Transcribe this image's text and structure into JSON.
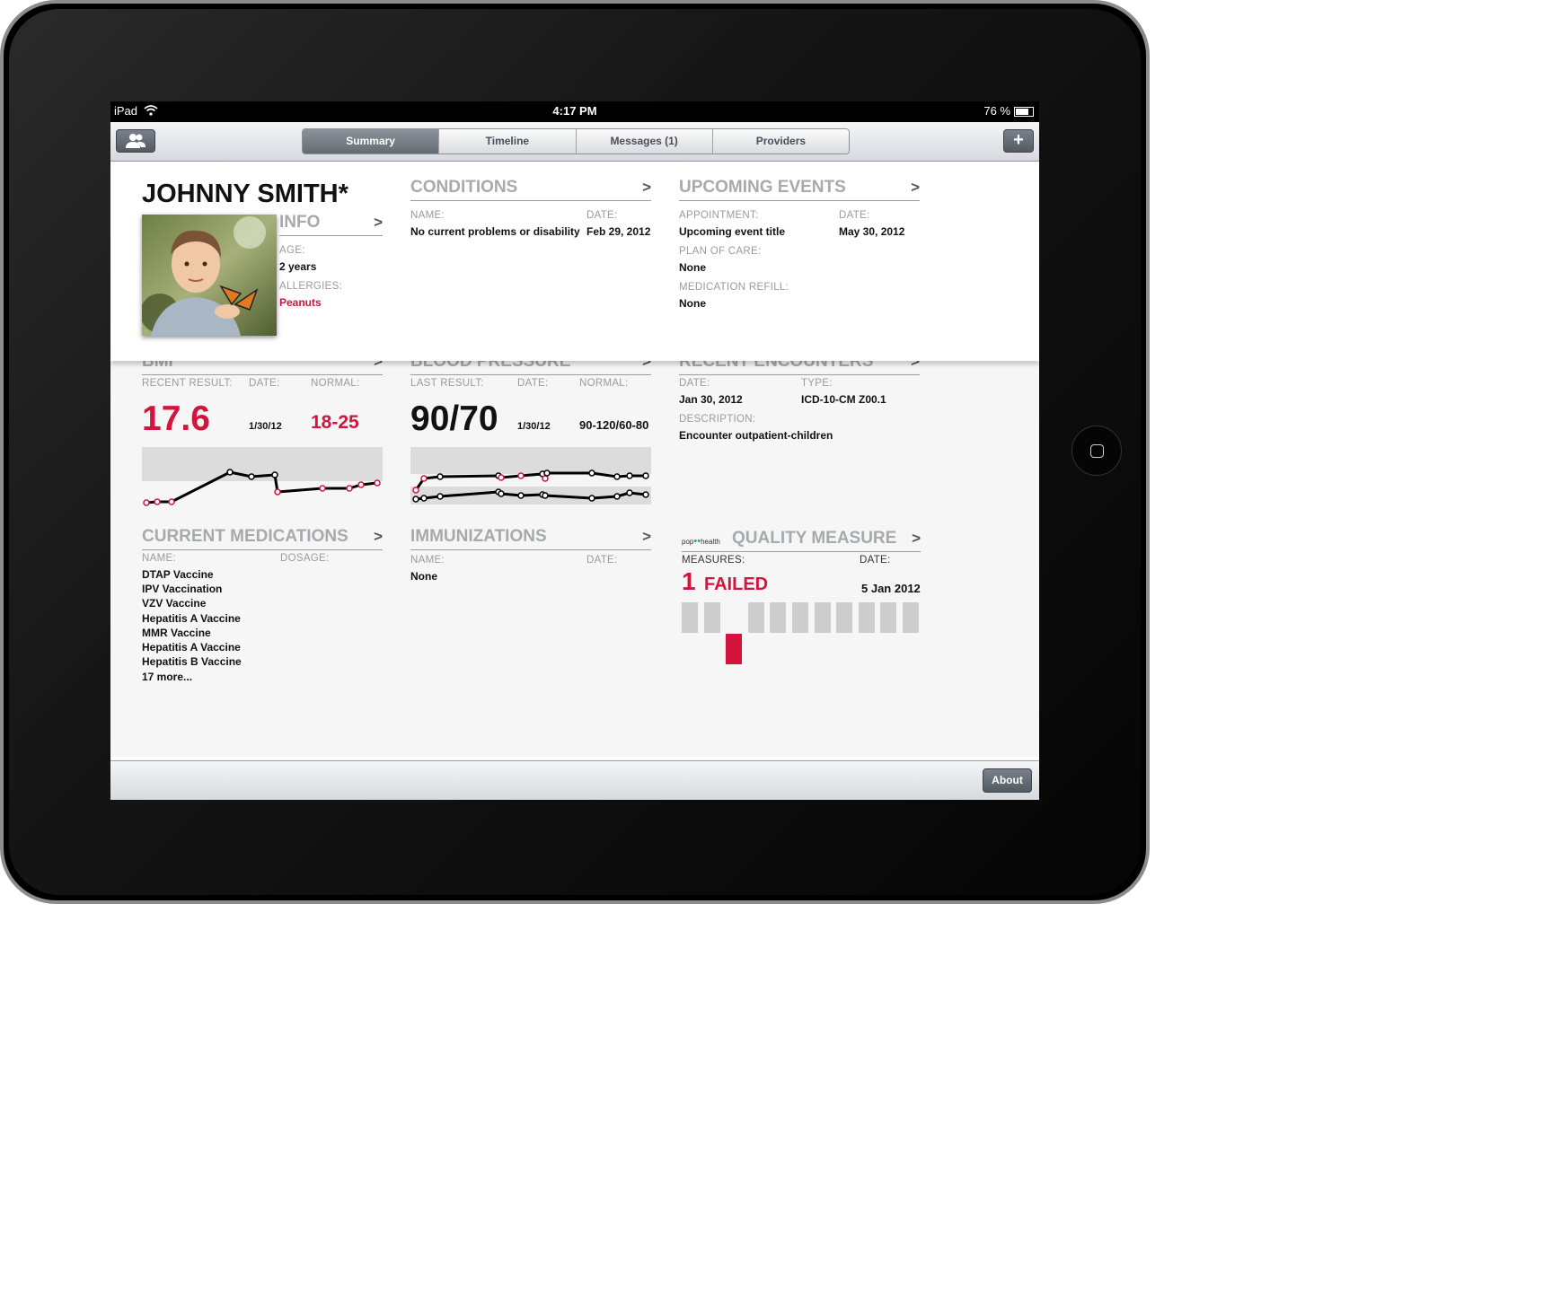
{
  "status_bar": {
    "carrier": "iPad",
    "time": "4:17 PM",
    "battery": "76 %",
    "battery_level": 0.76
  },
  "toolbar": {
    "patients_icon": "people-icon",
    "add_icon": "plus-icon",
    "tabs": [
      {
        "label": "Summary",
        "active": true
      },
      {
        "label": "Timeline",
        "active": false
      },
      {
        "label": "Messages (1)",
        "active": false
      },
      {
        "label": "Providers",
        "active": false
      }
    ]
  },
  "patient": {
    "name": "JOHNNY SMITH*"
  },
  "info": {
    "title": "INFO",
    "age_label": "AGE:",
    "age": "2 years",
    "allergies_label": "ALLERGIES:",
    "allergies": "Peanuts"
  },
  "conditions": {
    "title": "CONDITIONS",
    "name_label": "NAME:",
    "date_label": "DATE:",
    "name": "No current problems or disability",
    "date": "Feb 29, 2012"
  },
  "upcoming_events": {
    "title": "UPCOMING EVENTS",
    "appointment_label": "APPOINTMENT:",
    "appointment": "Upcoming event title",
    "date_label": "DATE:",
    "date": "May 30, 2012",
    "plan_label": "PLAN OF CARE:",
    "plan": "None",
    "refill_label": "MEDICATION REFILL:",
    "refill": "None"
  },
  "bmi": {
    "title": "BMI",
    "result_label": "RECENT RESULT:",
    "date_label": "DATE:",
    "normal_label": "NORMAL:",
    "result": "17.6",
    "date": "1/30/12",
    "normal": "18-25"
  },
  "blood_pressure": {
    "title": "BLOOD PRESSURE",
    "result_label": "LAST RESULT:",
    "date_label": "DATE:",
    "normal_label": "NORMAL:",
    "result": "90/70",
    "date": "1/30/12",
    "normal": "90-120/60-80"
  },
  "recent_encounters": {
    "title": "RECENT ENCOUNTERS",
    "date_label": "DATE:",
    "type_label": "TYPE:",
    "date": "Jan 30, 2012",
    "type": "ICD-10-CM Z00.1",
    "description_label": "DESCRIPTION:",
    "description": "Encounter outpatient-children"
  },
  "medications": {
    "title": "CURRENT MEDICATIONS",
    "name_label": "NAME:",
    "dosage_label": "DOSAGE:",
    "items": [
      "DTAP Vaccine",
      "IPV Vaccination",
      "VZV Vaccine",
      "Hepatitis A Vaccine",
      "MMR Vaccine",
      "Hepatitis A Vaccine",
      "Hepatitis B Vaccine",
      "17 more..."
    ]
  },
  "immunizations": {
    "title": "IMMUNIZATIONS",
    "name_label": "NAME:",
    "date_label": "DATE:",
    "name": "None"
  },
  "quality_measure": {
    "logo_text_left": "pop",
    "logo_text_right": "health",
    "title": "QUALITY MEASURE",
    "measures_label": "MEASURES:",
    "date_label": "DATE:",
    "failed_count": "1",
    "failed_label": "FAILED",
    "date": "5 Jan 2012",
    "measures": [
      "pass",
      "pass",
      "fail",
      "pass",
      "pass",
      "pass",
      "pass",
      "pass",
      "pass",
      "pass",
      "pass"
    ]
  },
  "bottom_bar": {
    "about_label": "About"
  },
  "colors": {
    "accent_red": "#d4143c",
    "title_gray": "#a7a9ac"
  }
}
